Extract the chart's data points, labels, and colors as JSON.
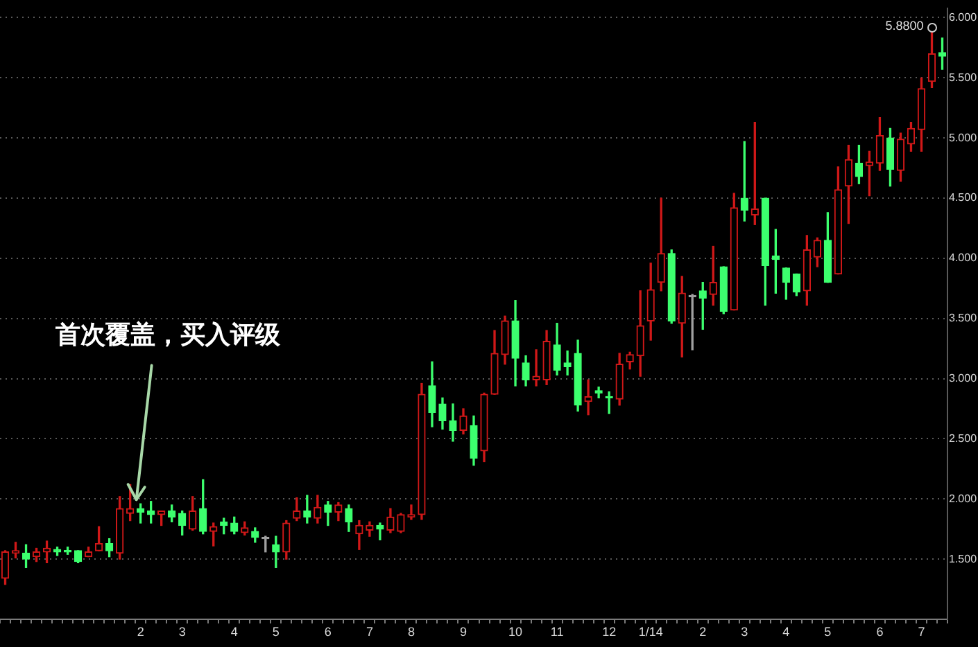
{
  "chart_data": {
    "type": "candlestick",
    "categories": [
      null,
      null,
      null,
      null,
      null,
      null,
      null,
      null,
      null,
      null,
      null,
      null,
      null,
      "2",
      null,
      null,
      null,
      "3",
      null,
      null,
      null,
      null,
      "4",
      null,
      null,
      null,
      "5",
      null,
      null,
      null,
      null,
      "6",
      null,
      null,
      null,
      "7",
      null,
      null,
      null,
      "8",
      null,
      null,
      null,
      null,
      "9",
      null,
      null,
      null,
      null,
      "10",
      null,
      null,
      null,
      "11",
      null,
      null,
      null,
      null,
      "12",
      null,
      null,
      null,
      "1/14",
      null,
      null,
      null,
      null,
      "2",
      null,
      null,
      null,
      "3",
      null,
      null,
      null,
      "4",
      null,
      null,
      null,
      "5",
      null,
      null,
      null,
      null,
      "6",
      null,
      null,
      null,
      "7",
      null,
      null
    ],
    "ohlc": [
      [
        1.34,
        1.57,
        1.29,
        1.56
      ],
      [
        1.55,
        1.64,
        1.51,
        1.57
      ],
      [
        1.55,
        1.62,
        1.43,
        1.5
      ],
      [
        1.52,
        1.59,
        1.48,
        1.56
      ],
      [
        1.56,
        1.65,
        1.47,
        1.59
      ],
      [
        1.58,
        1.6,
        1.53,
        1.56
      ],
      [
        1.57,
        1.6,
        1.54,
        1.56
      ],
      [
        1.57,
        1.57,
        1.47,
        1.48
      ],
      [
        1.52,
        1.6,
        1.52,
        1.56
      ],
      [
        1.57,
        1.77,
        1.57,
        1.63
      ],
      [
        1.63,
        1.67,
        1.52,
        1.57
      ],
      [
        1.55,
        2.02,
        1.5,
        1.92
      ],
      [
        1.88,
        2.12,
        1.82,
        1.92
      ],
      [
        1.92,
        1.96,
        1.8,
        1.89
      ],
      [
        1.9,
        1.98,
        1.8,
        1.87
      ],
      [
        1.87,
        1.9,
        1.78,
        1.9
      ],
      [
        1.9,
        1.95,
        1.81,
        1.85
      ],
      [
        1.88,
        1.9,
        1.7,
        1.78
      ],
      [
        1.75,
        2.02,
        1.74,
        1.9
      ],
      [
        1.92,
        2.16,
        1.71,
        1.73
      ],
      [
        1.73,
        1.8,
        1.61,
        1.77
      ],
      [
        1.81,
        1.84,
        1.71,
        1.78
      ],
      [
        1.8,
        1.85,
        1.71,
        1.73
      ],
      [
        1.72,
        1.81,
        1.7,
        1.76
      ],
      [
        1.73,
        1.76,
        1.64,
        1.68
      ],
      [
        1.67,
        1.69,
        1.56,
        1.67
      ],
      [
        1.62,
        1.69,
        1.43,
        1.56
      ],
      [
        1.56,
        1.82,
        1.5,
        1.8
      ],
      [
        1.84,
        2.01,
        1.82,
        1.9
      ],
      [
        1.9,
        2.03,
        1.8,
        1.85
      ],
      [
        1.84,
        2.03,
        1.8,
        1.93
      ],
      [
        1.95,
        1.98,
        1.78,
        1.89
      ],
      [
        1.89,
        1.97,
        1.82,
        1.95
      ],
      [
        1.92,
        1.95,
        1.73,
        1.81
      ],
      [
        1.71,
        1.82,
        1.58,
        1.78
      ],
      [
        1.74,
        1.81,
        1.69,
        1.78
      ],
      [
        1.78,
        1.8,
        1.66,
        1.75
      ],
      [
        1.74,
        1.92,
        1.72,
        1.85
      ],
      [
        1.73,
        1.88,
        1.72,
        1.87
      ],
      [
        1.85,
        1.95,
        1.83,
        1.87
      ],
      [
        1.87,
        2.96,
        1.83,
        2.87
      ],
      [
        2.94,
        3.14,
        2.6,
        2.72
      ],
      [
        2.79,
        2.84,
        2.58,
        2.65
      ],
      [
        2.65,
        2.79,
        2.48,
        2.57
      ],
      [
        2.57,
        2.75,
        2.54,
        2.69
      ],
      [
        2.61,
        2.69,
        2.28,
        2.34
      ],
      [
        2.4,
        2.88,
        2.31,
        2.87
      ],
      [
        2.87,
        3.4,
        2.87,
        3.21
      ],
      [
        3.2,
        3.52,
        3.12,
        3.48
      ],
      [
        3.48,
        3.65,
        2.94,
        3.17
      ],
      [
        3.13,
        3.19,
        2.94,
        2.99
      ],
      [
        2.99,
        3.24,
        2.94,
        3.02
      ],
      [
        2.99,
        3.4,
        2.95,
        3.31
      ],
      [
        3.28,
        3.46,
        3.03,
        3.07
      ],
      [
        3.13,
        3.23,
        3.03,
        3.1
      ],
      [
        3.21,
        3.32,
        2.73,
        2.78
      ],
      [
        2.81,
        2.99,
        2.7,
        2.85
      ],
      [
        2.9,
        2.93,
        2.84,
        2.88
      ],
      [
        2.85,
        2.89,
        2.71,
        2.84
      ],
      [
        2.83,
        3.21,
        2.78,
        3.12
      ],
      [
        3.14,
        3.22,
        3.08,
        3.2
      ],
      [
        3.19,
        3.73,
        3.02,
        3.44
      ],
      [
        3.48,
        3.96,
        3.32,
        3.74
      ],
      [
        3.8,
        4.5,
        3.73,
        4.04
      ],
      [
        4.04,
        4.07,
        3.46,
        3.48
      ],
      [
        3.46,
        3.85,
        3.18,
        3.71
      ],
      [
        3.68,
        3.7,
        3.24,
        3.68
      ],
      [
        3.73,
        3.8,
        3.41,
        3.67
      ],
      [
        3.7,
        4.1,
        3.61,
        3.8
      ],
      [
        3.93,
        3.93,
        3.54,
        3.56
      ],
      [
        3.57,
        4.54,
        3.57,
        4.42
      ],
      [
        4.5,
        4.97,
        4.31,
        4.4
      ],
      [
        4.36,
        5.13,
        4.28,
        4.41
      ],
      [
        4.5,
        4.5,
        3.61,
        3.94
      ],
      [
        4.02,
        4.24,
        3.71,
        3.99
      ],
      [
        3.92,
        3.92,
        3.66,
        3.8
      ],
      [
        3.87,
        3.87,
        3.69,
        3.72
      ],
      [
        3.73,
        4.19,
        3.61,
        4.07
      ],
      [
        4.01,
        4.17,
        3.93,
        4.15
      ],
      [
        4.15,
        4.38,
        3.8,
        3.8
      ],
      [
        3.87,
        4.76,
        3.87,
        4.57
      ],
      [
        4.6,
        4.94,
        4.29,
        4.82
      ],
      [
        4.79,
        4.94,
        4.62,
        4.68
      ],
      [
        4.77,
        4.89,
        4.52,
        4.8
      ],
      [
        4.79,
        5.17,
        4.73,
        5.02
      ],
      [
        5.0,
        5.08,
        4.6,
        4.74
      ],
      [
        4.73,
        5.04,
        4.64,
        4.99
      ],
      [
        4.95,
        5.13,
        4.89,
        5.08
      ],
      [
        5.07,
        5.5,
        4.89,
        5.41
      ],
      [
        5.47,
        5.88,
        5.42,
        5.7
      ],
      [
        5.71,
        5.83,
        5.57,
        5.68
      ]
    ],
    "colors": [
      "#d01818",
      "#d01818",
      "#3cff6e",
      "#d01818",
      "#d01818",
      "#3cff6e",
      "#3cff6e",
      "#3cff6e",
      "#d01818",
      "#d01818",
      "#3cff6e",
      "#d01818",
      "#d01818",
      "#3cff6e",
      "#3cff6e",
      "#d01818",
      "#3cff6e",
      "#3cff6e",
      "#d01818",
      "#3cff6e",
      "#d01818",
      "#3cff6e",
      "#3cff6e",
      "#d01818",
      "#3cff6e",
      "#a0a0a0",
      "#3cff6e",
      "#d01818",
      "#d01818",
      "#3cff6e",
      "#d01818",
      "#3cff6e",
      "#d01818",
      "#3cff6e",
      "#d01818",
      "#d01818",
      "#3cff6e",
      "#d01818",
      "#d01818",
      "#d01818",
      "#d01818",
      "#3cff6e",
      "#3cff6e",
      "#3cff6e",
      "#d01818",
      "#3cff6e",
      "#d01818",
      "#d01818",
      "#d01818",
      "#3cff6e",
      "#3cff6e",
      "#d01818",
      "#d01818",
      "#3cff6e",
      "#3cff6e",
      "#3cff6e",
      "#d01818",
      "#3cff6e",
      "#3cff6e",
      "#d01818",
      "#d01818",
      "#d01818",
      "#d01818",
      "#d01818",
      "#3cff6e",
      "#d01818",
      "#a0a0a0",
      "#3cff6e",
      "#d01818",
      "#3cff6e",
      "#d01818",
      "#3cff6e",
      "#d01818",
      "#3cff6e",
      "#3cff6e",
      "#3cff6e",
      "#3cff6e",
      "#d01818",
      "#d01818",
      "#3cff6e",
      "#d01818",
      "#d01818",
      "#3cff6e",
      "#d01818",
      "#d01818",
      "#3cff6e",
      "#d01818",
      "#d01818",
      "#d01818",
      "#d01818",
      "#3cff6e"
    ],
    "ylim": [
      1.0,
      6.08
    ],
    "yticks": [
      {
        "value": 1.5,
        "label": "1.500"
      },
      {
        "value": 2,
        "label": "2.000"
      },
      {
        "value": 2.5,
        "label": "2.500"
      },
      {
        "value": 3,
        "label": "3.000"
      },
      {
        "value": 3.5,
        "label": "3.500"
      },
      {
        "value": 4,
        "label": "4.000"
      },
      {
        "value": 4.5,
        "label": "4.500"
      },
      {
        "value": 5,
        "label": "5.000"
      },
      {
        "value": 5.5,
        "label": "5.500"
      },
      {
        "value": 6,
        "label": "6.000"
      }
    ],
    "grid": "y",
    "annotations": [
      {
        "text": "首次覆盖，买入评级",
        "x": "2",
        "y": 1.96
      },
      "5.8800"
    ]
  }
}
